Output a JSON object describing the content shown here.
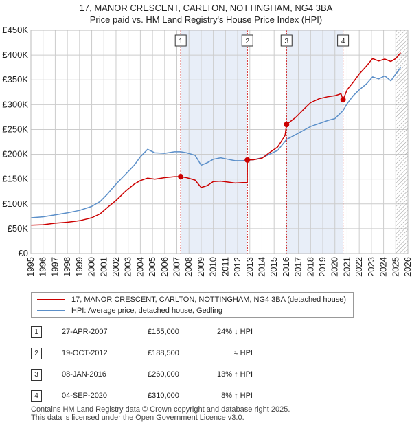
{
  "title": {
    "line1": "17, MANOR CRESCENT, CARLTON, NOTTINGHAM, NG4 3BA",
    "line2": "Price paid vs. HM Land Registry's House Price Index (HPI)"
  },
  "colors": {
    "red": "#cc0000",
    "blue": "#5b8fc9",
    "shade": "#e8eef8",
    "grid": "#cccccc",
    "future_hatch": "#999999"
  },
  "chart_data": {
    "type": "line",
    "title": "17, MANOR CRESCENT, CARLTON, NOTTINGHAM, NG4 3BA",
    "xlabel": "",
    "ylabel": "",
    "xlim": [
      1995,
      2026
    ],
    "ylim": [
      0,
      450000
    ],
    "x_ticks": [
      "1995",
      "1996",
      "1997",
      "1998",
      "1999",
      "2000",
      "2001",
      "2002",
      "2003",
      "2004",
      "2005",
      "2006",
      "2007",
      "2008",
      "2009",
      "2010",
      "2011",
      "2012",
      "2013",
      "2014",
      "2015",
      "2016",
      "2017",
      "2018",
      "2019",
      "2020",
      "2021",
      "2022",
      "2023",
      "2024",
      "2025",
      "2026"
    ],
    "y_ticks": [
      {
        "value": 0,
        "label": "£0"
      },
      {
        "value": 50000,
        "label": "£50K"
      },
      {
        "value": 100000,
        "label": "£100K"
      },
      {
        "value": 150000,
        "label": "£150K"
      },
      {
        "value": 200000,
        "label": "£200K"
      },
      {
        "value": 250000,
        "label": "£250K"
      },
      {
        "value": 300000,
        "label": "£300K"
      },
      {
        "value": 350000,
        "label": "£350K"
      },
      {
        "value": 400000,
        "label": "£400K"
      },
      {
        "value": 450000,
        "label": "£450K"
      }
    ],
    "shaded_periods": [
      [
        2007.32,
        2012.8
      ],
      [
        2016.02,
        2020.67
      ]
    ],
    "future_start": 2025.0,
    "series": [
      {
        "name": "17, MANOR CRESCENT, CARLTON, NOTTINGHAM, NG4 3BA (detached house)",
        "color": "#cc0000",
        "x": [
          1995.0,
          1996.0,
          1997.0,
          1998.0,
          1999.0,
          2000.0,
          2000.7,
          2001.3,
          2002.0,
          2002.8,
          2003.5,
          2004.0,
          2004.6,
          2005.2,
          2006.0,
          2006.8,
          2007.32,
          2007.8,
          2008.5,
          2009.0,
          2009.5,
          2010.0,
          2010.6,
          2011.2,
          2011.8,
          2012.4,
          2012.79,
          2012.8,
          2013.3,
          2014.0,
          2014.6,
          2015.3,
          2015.9,
          2016.02,
          2016.8,
          2017.4,
          2018.0,
          2018.7,
          2019.4,
          2020.0,
          2020.5,
          2020.67,
          2021.0,
          2021.5,
          2022.0,
          2022.6,
          2023.1,
          2023.6,
          2024.1,
          2024.6,
          2025.0,
          2025.4
        ],
        "values": [
          57000,
          58000,
          61000,
          63000,
          66000,
          72000,
          80000,
          93000,
          107000,
          126000,
          140000,
          147000,
          152000,
          150000,
          153000,
          155000,
          155000,
          153000,
          148000,
          133000,
          137000,
          145000,
          146000,
          144000,
          142000,
          143000,
          143000,
          188500,
          189000,
          192000,
          203000,
          215000,
          238000,
          260000,
          275000,
          290000,
          304000,
          312000,
          316000,
          318000,
          322000,
          310000,
          330000,
          345000,
          362000,
          378000,
          393000,
          388000,
          392000,
          387000,
          393000,
          405000
        ]
      },
      {
        "name": "HPI: Average price, detached house, Gedling",
        "color": "#5b8fc9",
        "x": [
          1995.0,
          1996.0,
          1997.0,
          1998.0,
          1999.0,
          2000.0,
          2000.7,
          2001.3,
          2002.0,
          2002.8,
          2003.5,
          2004.0,
          2004.6,
          2005.2,
          2006.0,
          2006.8,
          2007.32,
          2007.8,
          2008.5,
          2009.0,
          2009.5,
          2010.0,
          2010.6,
          2011.2,
          2011.8,
          2012.4,
          2012.8,
          2013.3,
          2014.0,
          2014.6,
          2015.3,
          2016.02,
          2016.8,
          2017.4,
          2018.0,
          2018.7,
          2019.4,
          2020.0,
          2020.67,
          2021.0,
          2021.5,
          2022.0,
          2022.6,
          2023.1,
          2023.6,
          2024.1,
          2024.6,
          2025.0,
          2025.4
        ],
        "values": [
          72000,
          74000,
          78000,
          82000,
          87000,
          95000,
          105000,
          120000,
          140000,
          160000,
          178000,
          195000,
          210000,
          203000,
          202000,
          205000,
          205000,
          203000,
          198000,
          178000,
          183000,
          190000,
          193000,
          190000,
          187000,
          187000,
          188000,
          189000,
          193000,
          200000,
          208000,
          230000,
          240000,
          248000,
          256000,
          262000,
          268000,
          272000,
          288000,
          302000,
          318000,
          330000,
          342000,
          356000,
          352000,
          358000,
          348000,
          362000,
          375000
        ]
      }
    ],
    "sale_points": [
      {
        "n": "1",
        "x": 2007.32,
        "value": 155000
      },
      {
        "n": "2",
        "x": 2012.8,
        "value": 188500
      },
      {
        "n": "3",
        "x": 2016.02,
        "value": 260000
      },
      {
        "n": "4",
        "x": 2020.67,
        "value": 310000
      }
    ]
  },
  "legend": {
    "red_label": "17, MANOR CRESCENT, CARLTON, NOTTINGHAM, NG4 3BA (detached house)",
    "blue_label": "HPI: Average price, detached house, Gedling"
  },
  "transactions": [
    {
      "n": "1",
      "date": "27-APR-2007",
      "price": "£155,000",
      "hpi": "24% ↓ HPI"
    },
    {
      "n": "2",
      "date": "19-OCT-2012",
      "price": "£188,500",
      "hpi": "≈ HPI"
    },
    {
      "n": "3",
      "date": "08-JAN-2016",
      "price": "£260,000",
      "hpi": "13% ↑ HPI"
    },
    {
      "n": "4",
      "date": "04-SEP-2020",
      "price": "£310,000",
      "hpi": "8% ↑ HPI"
    }
  ],
  "footer": {
    "line1": "Contains HM Land Registry data © Crown copyright and database right 2025.",
    "line2": "This data is licensed under the Open Government Licence v3.0."
  }
}
